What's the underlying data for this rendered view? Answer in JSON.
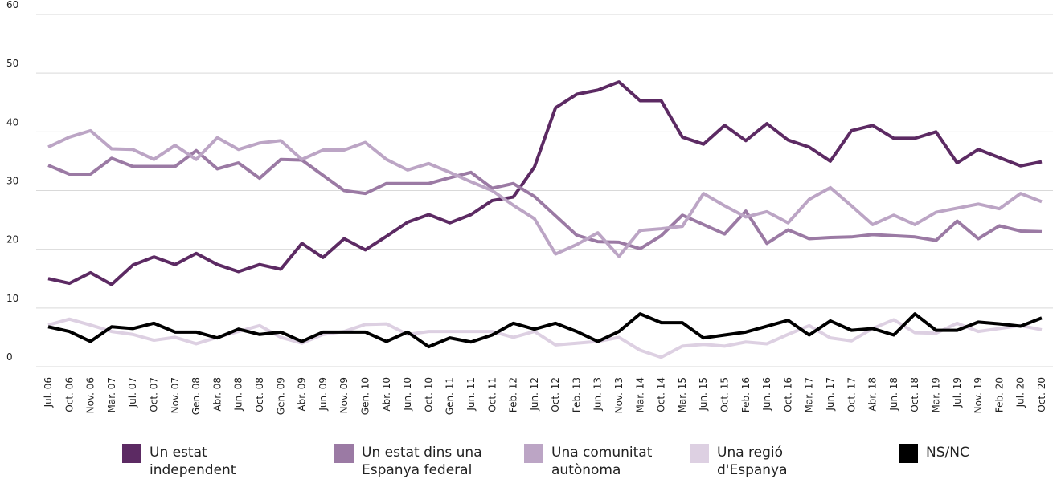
{
  "chart_data": {
    "type": "line",
    "categories": [
      "Jul. 06",
      "Oct. 06",
      "Nov. 06",
      "Mar. 07",
      "Jul. 07",
      "Oct. 07",
      "Nov. 07",
      "Gen. 08",
      "Abr. 08",
      "Jun. 08",
      "Oct. 08",
      "Gen. 09",
      "Abr. 09",
      "Jun. 09",
      "Nov. 09",
      "Gen. 10",
      "Abr. 10",
      "Jun. 10",
      "Oct. 10",
      "Gen. 11",
      "Jun. 11",
      "Oct. 11",
      "Feb. 12",
      "Jun. 12",
      "Oct. 12",
      "Feb. 13",
      "Jun. 13",
      "Nov. 13",
      "Mar. 14",
      "Oct. 14",
      "Mar. 15",
      "Jun. 15",
      "Oct. 15",
      "Feb. 16",
      "Jun. 16",
      "Oct. 16",
      "Mar. 17",
      "Jun. 17",
      "Oct. 17",
      "Abr. 18",
      "Jun. 18",
      "Oct. 18",
      "Mar. 19",
      "Jul. 19",
      "Nov. 19",
      "Feb. 20",
      "Jul. 20",
      "Oct. 20"
    ],
    "series": [
      {
        "name": "Un estat independent",
        "color": "#5c2a63",
        "values": [
          15,
          14.2,
          16,
          14,
          17.3,
          18.7,
          17.4,
          19.3,
          17.4,
          16.2,
          17.4,
          16.6,
          21,
          18.6,
          21.8,
          19.9,
          22.2,
          24.6,
          25.9,
          24.5,
          25.9,
          28.3,
          28.9,
          34,
          44.1,
          46.4,
          47.1,
          48.5,
          45.3,
          45.3,
          39.1,
          37.9,
          41.1,
          38.5,
          41.4,
          38.6,
          37.4,
          35,
          40.2,
          41.1,
          38.9,
          38.9,
          40,
          34.7,
          37,
          35.6,
          34.2,
          34.9
        ]
      },
      {
        "name": "Un estat dins una Espanya federal",
        "color": "#9b7aa4",
        "values": [
          34.3,
          32.8,
          32.8,
          35.5,
          34.1,
          34.1,
          34.1,
          36.8,
          33.7,
          34.7,
          32.1,
          35.3,
          35.2,
          32.6,
          30,
          29.5,
          31.2,
          31.2,
          31.2,
          32.2,
          33.1,
          30.4,
          31.2,
          29,
          25.7,
          22.4,
          21.3,
          21.2,
          20.1,
          22.3,
          25.8,
          24.2,
          22.6,
          26.5,
          21,
          23.3,
          21.8,
          22,
          22.1,
          22.5,
          22.3,
          22.1,
          21.5,
          24.8,
          21.8,
          24,
          23.1,
          23
        ]
      },
      {
        "name": "Una comunitat autònoma",
        "color": "#bca5c5",
        "values": [
          37.4,
          39.1,
          40.2,
          37.1,
          37,
          35.3,
          37.7,
          35.3,
          39,
          37,
          38.1,
          38.5,
          35.3,
          36.9,
          36.9,
          38.2,
          35.3,
          33.5,
          34.6,
          33.1,
          31.5,
          30,
          27.5,
          25.2,
          19.2,
          20.8,
          22.8,
          18.8,
          23.2,
          23.5,
          23.9,
          29.5,
          27.4,
          25.5,
          26.4,
          24.5,
          28.5,
          30.5,
          27.4,
          24.2,
          25.8,
          24.2,
          26.3,
          27,
          27.7,
          26.9,
          29.5,
          28.1
        ]
      },
      {
        "name": "Una regió d'Espanya",
        "color": "#ddd0e2",
        "values": [
          7.1,
          8.1,
          7.1,
          6,
          5.5,
          4.5,
          5,
          3.9,
          5,
          6,
          7,
          5,
          4,
          5.5,
          6,
          7.2,
          7.3,
          5.5,
          6,
          6,
          6,
          6,
          5,
          6,
          3.7,
          4,
          4.3,
          5,
          2.8,
          1.6,
          3.5,
          3.8,
          3.5,
          4.2,
          3.9,
          5.5,
          7,
          4.9,
          4.4,
          6.5,
          8,
          5.8,
          5.7,
          7.4,
          6,
          6.5,
          7,
          6.3
        ]
      },
      {
        "name": "NS/NC",
        "color": "#000000",
        "values": [
          6.8,
          6,
          4.3,
          6.8,
          6.5,
          7.4,
          5.9,
          5.9,
          4.9,
          6.4,
          5.5,
          5.9,
          4.3,
          5.9,
          5.9,
          5.9,
          4.3,
          5.9,
          3.4,
          4.9,
          4.2,
          5.4,
          7.4,
          6.4,
          7.4,
          6,
          4.3,
          6,
          9,
          7.5,
          7.5,
          4.9,
          5.4,
          5.9,
          6.9,
          7.9,
          5.4,
          7.8,
          6.2,
          6.5,
          5.4,
          9,
          6.2,
          6.2,
          7.6,
          7.3,
          6.9,
          8.3
        ]
      }
    ],
    "ylim": [
      0,
      60
    ],
    "yticks": [
      0,
      10,
      20,
      30,
      40,
      50,
      60
    ],
    "grid": true
  }
}
